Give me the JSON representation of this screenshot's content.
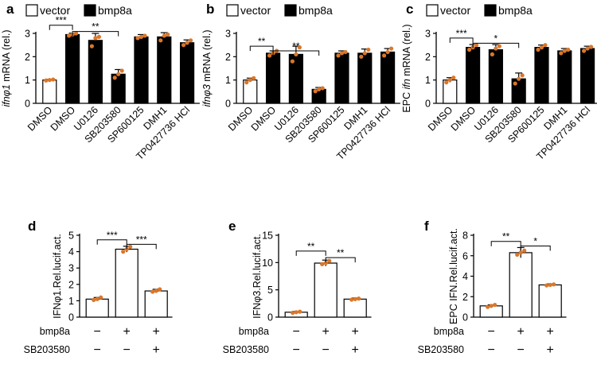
{
  "legend": {
    "vector": "vector",
    "bmp8a": "bmp8a"
  },
  "colors": {
    "vector": "#ffffff",
    "bmp8a": "#000000",
    "dots": "#d9772a",
    "outline": "#000000"
  },
  "chart_data": [
    {
      "panel": "a",
      "type": "bar",
      "ylabel_italic": "ifnφ1",
      "ylabel_rest": " mRNA (rel.)",
      "ylim": [
        0,
        3
      ],
      "yticks": [
        "0",
        "1",
        "2",
        "3"
      ],
      "categories": [
        "DMSO",
        "DMSO",
        "U0126",
        "SB203580",
        "SP600125",
        "DMH1",
        "TP0427736 HCl"
      ],
      "groups": [
        "vector",
        "bmp8a",
        "bmp8a",
        "bmp8a",
        "bmp8a",
        "bmp8a",
        "bmp8a"
      ],
      "values": [
        1.0,
        2.95,
        2.7,
        1.25,
        2.85,
        2.85,
        2.6
      ],
      "errors": [
        0.03,
        0.06,
        0.3,
        0.2,
        0.1,
        0.18,
        0.12
      ],
      "points": [
        [
          0.98,
          1.0,
          1.02
        ],
        [
          2.9,
          2.95,
          3.0
        ],
        [
          2.45,
          2.8,
          2.85
        ],
        [
          1.1,
          1.25,
          1.4
        ],
        [
          2.8,
          2.85,
          2.9
        ],
        [
          2.7,
          2.9,
          2.95
        ],
        [
          2.5,
          2.6,
          2.7
        ]
      ],
      "brackets": [
        {
          "a": 0,
          "b": 1,
          "label": "***",
          "y": 3.35
        },
        {
          "a": 1,
          "b": 3,
          "label": "**",
          "y": 3.08
        }
      ]
    },
    {
      "panel": "b",
      "type": "bar",
      "ylabel_italic": "ifnφ3",
      "ylabel_rest": " mRNA (rel.)",
      "ylim": [
        0,
        3
      ],
      "yticks": [
        "0",
        "1",
        "2",
        "3"
      ],
      "categories": [
        "DMSO",
        "DMSO",
        "U0126",
        "SB203580",
        "SP600125",
        "DMH1",
        "TP0427736 HCl"
      ],
      "groups": [
        "vector",
        "bmp8a",
        "bmp8a",
        "bmp8a",
        "bmp8a",
        "bmp8a",
        "bmp8a"
      ],
      "values": [
        1.0,
        2.15,
        2.1,
        0.6,
        2.15,
        2.15,
        2.2
      ],
      "errors": [
        0.08,
        0.1,
        0.35,
        0.08,
        0.1,
        0.18,
        0.15
      ],
      "points": [
        [
          0.9,
          1.0,
          1.08
        ],
        [
          2.05,
          2.15,
          2.25
        ],
        [
          1.8,
          2.1,
          2.4
        ],
        [
          0.52,
          0.6,
          0.65
        ],
        [
          2.05,
          2.15,
          2.2
        ],
        [
          2.0,
          2.15,
          2.3
        ],
        [
          2.05,
          2.2,
          2.35
        ]
      ],
      "brackets": [
        {
          "a": 0,
          "b": 1,
          "label": "**",
          "y": 2.45
        },
        {
          "a": 1,
          "b": 3,
          "label": "**",
          "y": 2.25
        }
      ]
    },
    {
      "panel": "c",
      "type": "bar",
      "ylabel_italic": "ifn",
      "ylabel_prefix": "EPC ",
      "ylabel_rest": " mRNA (rel.)",
      "ylim": [
        0,
        3
      ],
      "yticks": [
        "0",
        "1",
        "2",
        "3"
      ],
      "categories": [
        "DMSO",
        "DMSO",
        "U0126",
        "SB203580",
        "SP600125",
        "DMH1",
        "TP0427736 HCl"
      ],
      "groups": [
        "vector",
        "bmp8a",
        "bmp8a",
        "bmp8a",
        "bmp8a",
        "bmp8a",
        "bmp8a"
      ],
      "values": [
        1.0,
        2.4,
        2.3,
        1.05,
        2.4,
        2.25,
        2.35
      ],
      "errors": [
        0.1,
        0.12,
        0.22,
        0.25,
        0.1,
        0.1,
        0.1
      ],
      "points": [
        [
          0.9,
          1.0,
          1.1
        ],
        [
          2.3,
          2.4,
          2.5
        ],
        [
          2.1,
          2.35,
          2.45
        ],
        [
          0.85,
          1.05,
          1.2
        ],
        [
          2.3,
          2.4,
          2.5
        ],
        [
          2.15,
          2.25,
          2.3
        ],
        [
          2.25,
          2.35,
          2.42
        ]
      ],
      "brackets": [
        {
          "a": 0,
          "b": 1,
          "label": "***",
          "y": 2.8
        },
        {
          "a": 1,
          "b": 3,
          "label": "*",
          "y": 2.58
        }
      ]
    },
    {
      "panel": "d",
      "type": "bar",
      "ylabel": "IFNφ1.Rel.lucif.act.",
      "ylim": [
        0,
        5
      ],
      "yticks": [
        "0",
        "1",
        "2",
        "3",
        "4",
        "5"
      ],
      "rows": [
        {
          "label": "bmp8a",
          "signs": [
            "−",
            "+",
            "+"
          ]
        },
        {
          "label": "SB203580",
          "signs": [
            "−",
            "−",
            "+"
          ]
        }
      ],
      "groups": [
        "vector",
        "vector",
        "vector"
      ],
      "values": [
        1.1,
        4.15,
        1.6
      ],
      "errors": [
        0.1,
        0.18,
        0.1
      ],
      "points": [
        [
          1.05,
          1.1,
          1.2
        ],
        [
          4.0,
          4.15,
          4.3
        ],
        [
          1.55,
          1.6,
          1.7
        ]
      ],
      "brackets": [
        {
          "a": 0,
          "b": 1,
          "label": "***",
          "y": 4.72
        },
        {
          "a": 1,
          "b": 2,
          "label": "***",
          "y": 4.45
        }
      ]
    },
    {
      "panel": "e",
      "type": "bar",
      "ylabel": "IFNφ3.Rel.lucif.act.",
      "ylim": [
        0,
        15
      ],
      "yticks": [
        "0",
        "5",
        "10",
        "15"
      ],
      "rows": [
        {
          "label": "bmp8a",
          "signs": [
            "−",
            "+",
            "+"
          ]
        },
        {
          "label": "SB203580",
          "signs": [
            "−",
            "−",
            "+"
          ]
        }
      ],
      "groups": [
        "vector",
        "vector",
        "vector"
      ],
      "values": [
        0.9,
        9.9,
        3.3
      ],
      "errors": [
        0.15,
        0.55,
        0.2
      ],
      "points": [
        [
          0.8,
          0.9,
          1.0
        ],
        [
          9.7,
          9.9,
          10.3
        ],
        [
          3.2,
          3.3,
          3.4
        ]
      ],
      "brackets": [
        {
          "a": 0,
          "b": 1,
          "label": "**",
          "y": 12.1
        },
        {
          "a": 1,
          "b": 2,
          "label": "**",
          "y": 10.9
        }
      ]
    },
    {
      "panel": "f",
      "type": "bar",
      "ylabel": "EPC IFN.Rel.lucif.act.",
      "ylim": [
        0,
        8
      ],
      "yticks": [
        "0",
        "2",
        "4",
        "6",
        "8"
      ],
      "rows": [
        {
          "label": "bmp8a",
          "signs": [
            "−",
            "+",
            "+"
          ]
        },
        {
          "label": "SB203580",
          "signs": [
            "−",
            "−",
            "+"
          ]
        }
      ],
      "groups": [
        "vector",
        "vector",
        "vector"
      ],
      "values": [
        1.1,
        6.3,
        3.15
      ],
      "errors": [
        0.1,
        0.5,
        0.1
      ],
      "points": [
        [
          1.0,
          1.1,
          1.2
        ],
        [
          6.1,
          6.3,
          6.5
        ],
        [
          3.1,
          3.15,
          3.2
        ]
      ],
      "brackets": [
        {
          "a": 0,
          "b": 1,
          "label": "**",
          "y": 7.4
        },
        {
          "a": 1,
          "b": 2,
          "label": "*",
          "y": 6.95
        }
      ]
    }
  ]
}
